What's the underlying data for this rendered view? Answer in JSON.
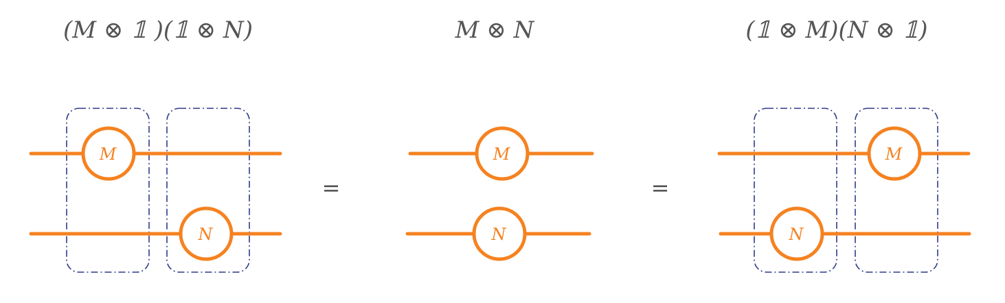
{
  "formulas": {
    "left": "(M ⊗ 𝟙 )(𝟙 ⊗ N)",
    "center": "M ⊗ N",
    "right": "(𝟙 ⊗ M)(N ⊗ 𝟙)"
  },
  "gates": {
    "m_label": "M",
    "n_label": "N"
  },
  "equals": "=",
  "colors": {
    "wire": "#f58220",
    "box": "#2e3a87",
    "text": "#555555"
  }
}
